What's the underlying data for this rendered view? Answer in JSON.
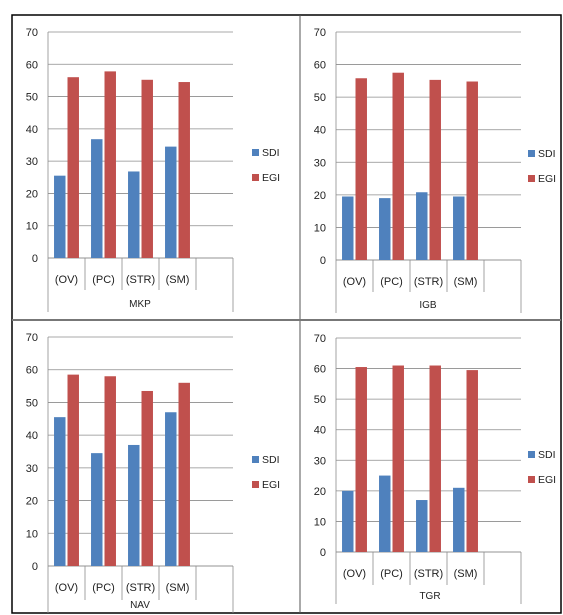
{
  "chart_data": [
    {
      "type": "bar",
      "xlabel": "MKP",
      "categories": [
        "(OV)",
        "(PC)",
        "(STR)",
        "(SM)"
      ],
      "ylim": [
        0,
        70
      ],
      "yticks": [
        "0",
        "10",
        "20",
        "30",
        "40",
        "50",
        "60",
        "70"
      ],
      "series": [
        {
          "name": "SDI",
          "color": "#4f81bd",
          "values": [
            25.5,
            36.8,
            26.8,
            34.5
          ]
        },
        {
          "name": "EGI",
          "color": "#c0504d",
          "values": [
            56,
            57.8,
            55.2,
            54.5
          ]
        }
      ],
      "legend": "right",
      "grid": true
    },
    {
      "type": "bar",
      "xlabel": "IGB",
      "categories": [
        "(OV)",
        "(PC)",
        "(STR)",
        "(SM)"
      ],
      "ylim": [
        0,
        70
      ],
      "yticks": [
        "0",
        "10",
        "20",
        "30",
        "40",
        "50",
        "60",
        "70"
      ],
      "series": [
        {
          "name": "SDI",
          "color": "#4f81bd",
          "values": [
            19.5,
            19,
            20.8,
            19.5
          ]
        },
        {
          "name": "EGI",
          "color": "#c0504d",
          "values": [
            55.8,
            57.5,
            55.3,
            54.8
          ]
        }
      ],
      "legend": "right",
      "grid": true
    },
    {
      "type": "bar",
      "xlabel": "NAV",
      "categories": [
        "(OV)",
        "(PC)",
        "(STR)",
        "(SM)"
      ],
      "ylim": [
        0,
        70
      ],
      "yticks": [
        "0",
        "10",
        "20",
        "30",
        "40",
        "50",
        "60",
        "70"
      ],
      "series": [
        {
          "name": "SDI",
          "color": "#4f81bd",
          "values": [
            45.5,
            34.5,
            37,
            47
          ]
        },
        {
          "name": "EGI",
          "color": "#c0504d",
          "values": [
            58.5,
            58,
            53.5,
            56
          ]
        }
      ],
      "legend": "right",
      "grid": true
    },
    {
      "type": "bar",
      "xlabel": "TGR",
      "categories": [
        "(OV)",
        "(PC)",
        "(STR)",
        "(SM)"
      ],
      "ylim": [
        0,
        70
      ],
      "yticks": [
        "0",
        "10",
        "20",
        "30",
        "40",
        "50",
        "60",
        "70"
      ],
      "series": [
        {
          "name": "SDI",
          "color": "#4f81bd",
          "values": [
            20,
            25,
            17,
            21
          ]
        },
        {
          "name": "EGI",
          "color": "#c0504d",
          "values": [
            60.5,
            61,
            61,
            59.5
          ]
        }
      ],
      "legend": "right",
      "grid": true
    }
  ]
}
